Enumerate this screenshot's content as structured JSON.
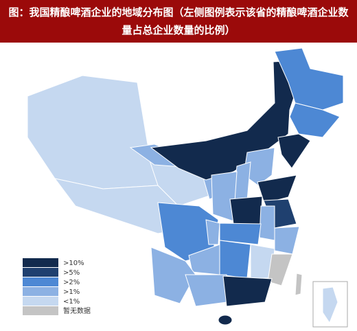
{
  "header": {
    "title": "图：我国精酿啤酒企业的地域分布图（左侧图例表示该省的精酿啤酒企业数量占总企业数量的比例）"
  },
  "legend": {
    "items": [
      {
        "label": ">10%",
        "color": "#122a4d"
      },
      {
        "label": ">5%",
        "color": "#1f406f"
      },
      {
        "label": ">2%",
        "color": "#4d88d4"
      },
      {
        "label": ">1%",
        "color": "#8cb1e3"
      },
      {
        "label": "<1%",
        "color": "#c5d8f0"
      },
      {
        "label": "暂无数据",
        "color": "#c4c4c4"
      }
    ]
  }
}
